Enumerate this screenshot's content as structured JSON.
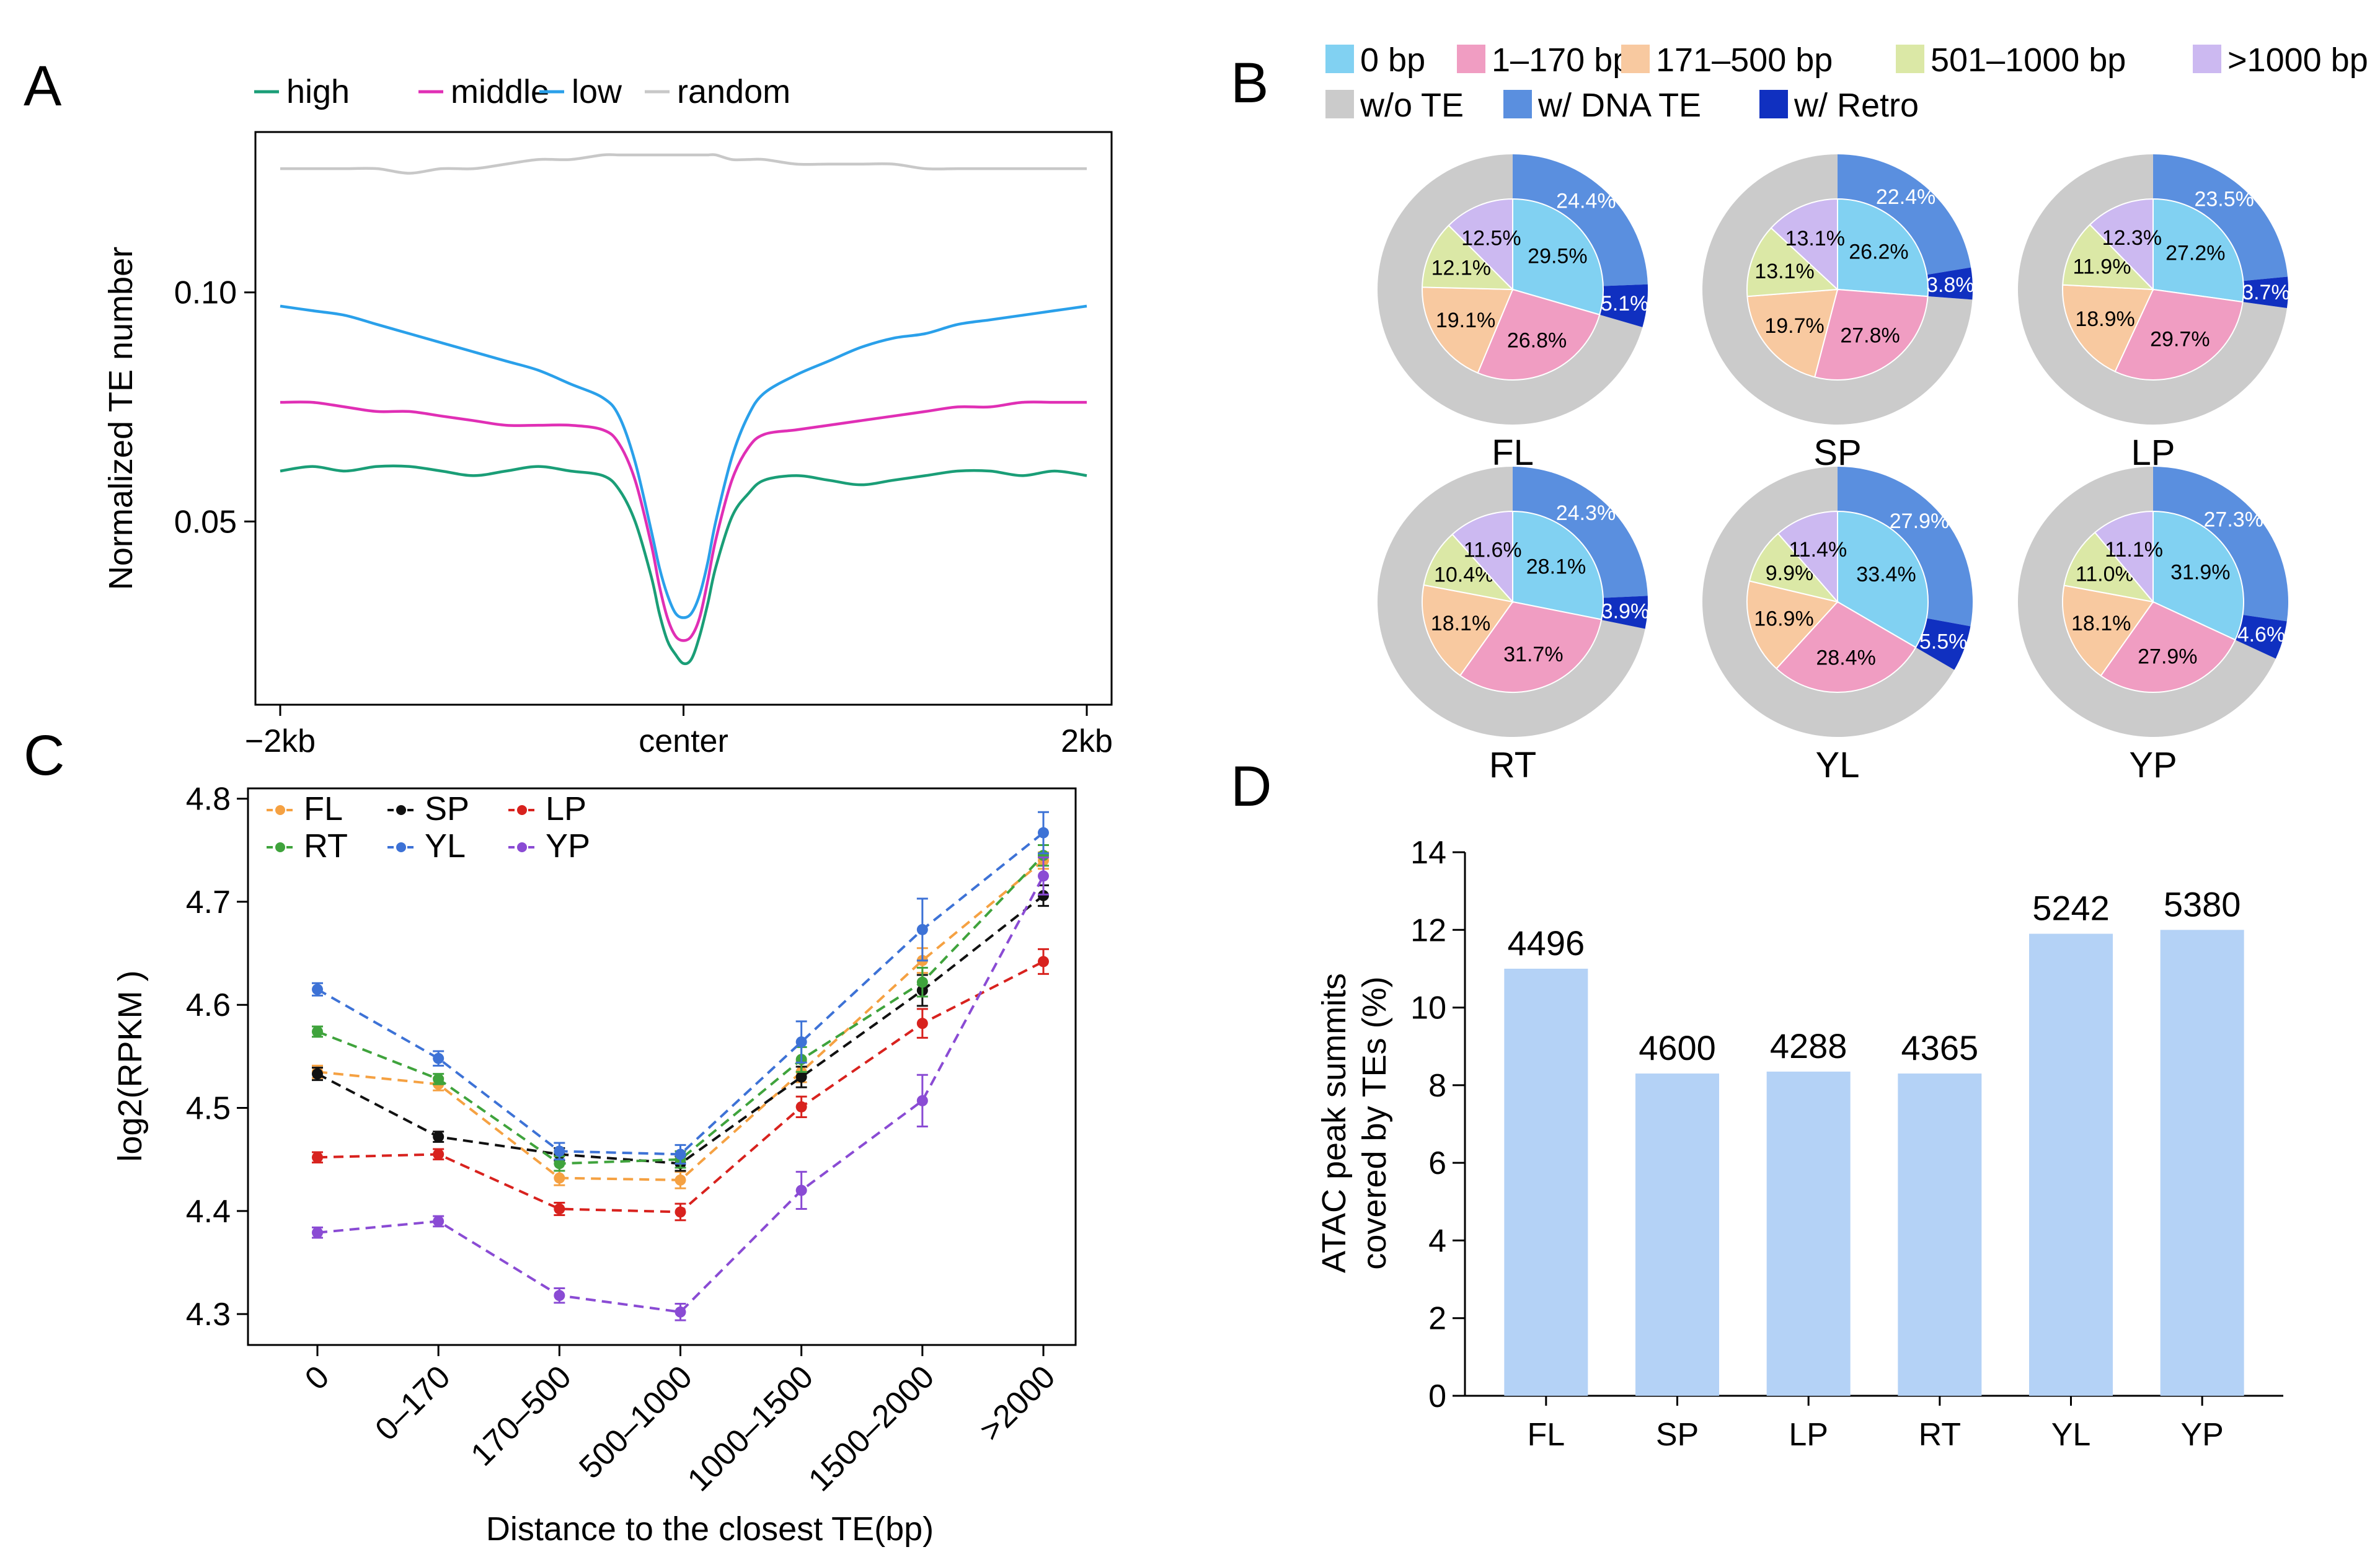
{
  "panels": {
    "a": "A",
    "b": "B",
    "c": "C",
    "d": "D"
  },
  "chart_data": [
    {
      "panel": "A",
      "type": "line",
      "ylabel": "Normalized TE number",
      "xlabel": "",
      "x_tick_labels": [
        "−2kb",
        "center",
        "2kb"
      ],
      "y_ticks": [
        0.05,
        0.1
      ],
      "y_tick_labels": [
        "0.05",
        "0.10"
      ],
      "ylim": [
        0.01,
        0.135
      ],
      "xlim": [
        0,
        100
      ],
      "x": [
        0,
        4,
        8,
        12,
        16,
        20,
        24,
        28,
        32,
        36,
        40,
        42,
        44,
        46,
        47,
        48,
        49,
        50,
        51,
        52,
        53,
        54,
        56,
        58,
        60,
        64,
        68,
        72,
        76,
        80,
        84,
        88,
        92,
        96,
        100
      ],
      "series": [
        {
          "name": "high",
          "color": "#1a9e77",
          "values": [
            0.061,
            0.062,
            0.061,
            0.062,
            0.062,
            0.061,
            0.06,
            0.061,
            0.062,
            0.061,
            0.06,
            0.057,
            0.05,
            0.038,
            0.03,
            0.024,
            0.021,
            0.019,
            0.02,
            0.025,
            0.032,
            0.04,
            0.051,
            0.056,
            0.059,
            0.06,
            0.059,
            0.058,
            0.059,
            0.06,
            0.061,
            0.061,
            0.06,
            0.061,
            0.06
          ]
        },
        {
          "name": "middle",
          "color": "#e02fb5",
          "values": [
            0.076,
            0.076,
            0.075,
            0.074,
            0.074,
            0.073,
            0.072,
            0.071,
            0.071,
            0.071,
            0.07,
            0.067,
            0.059,
            0.045,
            0.036,
            0.029,
            0.025,
            0.024,
            0.025,
            0.029,
            0.037,
            0.046,
            0.059,
            0.066,
            0.069,
            0.07,
            0.071,
            0.072,
            0.073,
            0.074,
            0.075,
            0.075,
            0.076,
            0.076,
            0.076
          ]
        },
        {
          "name": "low",
          "color": "#2aa0ea",
          "values": [
            0.097,
            0.096,
            0.095,
            0.093,
            0.091,
            0.089,
            0.087,
            0.085,
            0.083,
            0.08,
            0.077,
            0.073,
            0.063,
            0.048,
            0.04,
            0.034,
            0.03,
            0.029,
            0.03,
            0.034,
            0.041,
            0.05,
            0.064,
            0.073,
            0.078,
            0.082,
            0.085,
            0.088,
            0.09,
            0.091,
            0.093,
            0.094,
            0.095,
            0.096,
            0.097
          ]
        },
        {
          "name": "random",
          "color": "#c8c8c8",
          "values": [
            0.127,
            0.127,
            0.127,
            0.127,
            0.126,
            0.127,
            0.127,
            0.128,
            0.129,
            0.129,
            0.13,
            0.13,
            0.13,
            0.13,
            0.13,
            0.13,
            0.13,
            0.13,
            0.13,
            0.13,
            0.13,
            0.13,
            0.129,
            0.129,
            0.129,
            0.128,
            0.128,
            0.128,
            0.128,
            0.127,
            0.127,
            0.127,
            0.127,
            0.127,
            0.127
          ]
        }
      ]
    },
    {
      "panel": "B",
      "type": "pie",
      "legend": [
        {
          "label": "0 bp",
          "color": "#81d1f2"
        },
        {
          "label": "1–170 bp",
          "color": "#f09dc2"
        },
        {
          "label": "171–500 bp",
          "color": "#f8c9a0"
        },
        {
          "label": "501–1000 bp",
          "color": "#dbe8a6"
        },
        {
          "label": ">1000 bp",
          "color": "#ccb9f1"
        },
        {
          "label": "w/o TE",
          "color": "#cbcbcb"
        },
        {
          "label": "w/ DNA TE",
          "color": "#5a8fdf"
        },
        {
          "label": "w/ Retro",
          "color": "#1030c0"
        }
      ],
      "inner_categories": [
        "0 bp",
        "1–170 bp",
        "171–500 bp",
        "501–1000 bp",
        ">1000 bp"
      ],
      "inner_colors": [
        "#81d1f2",
        "#f09dc2",
        "#f8c9a0",
        "#dbe8a6",
        "#ccb9f1"
      ],
      "outer_colors": {
        "dna": "#5a8fdf",
        "retro": "#1030c0",
        "none": "#cbcbcb"
      },
      "pies": [
        {
          "tissue": "FL",
          "inner": [
            29.5,
            26.8,
            19.1,
            12.1,
            12.5
          ],
          "inner_labels": [
            "29.5%",
            "26.8%",
            "19.1%",
            "12.1%",
            "12.5%"
          ],
          "dna": 24.4,
          "dna_label": "24.4%",
          "retro": 5.1,
          "retro_label": "5.1%"
        },
        {
          "tissue": "SP",
          "inner": [
            26.2,
            27.8,
            19.7,
            13.1,
            13.1
          ],
          "inner_labels": [
            "26.2%",
            "27.8%",
            "19.7%",
            "13.1%",
            "13.1%"
          ],
          "dna": 22.4,
          "dna_label": "22.4%",
          "retro": 3.8,
          "retro_label": "3.8%"
        },
        {
          "tissue": "LP",
          "inner": [
            27.2,
            29.7,
            18.9,
            11.9,
            12.3
          ],
          "inner_labels": [
            "27.2%",
            "29.7%",
            "18.9%",
            "11.9%",
            "12.3%"
          ],
          "dna": 23.5,
          "dna_label": "23.5%",
          "retro": 3.7,
          "retro_label": "3.7%"
        },
        {
          "tissue": "RT",
          "inner": [
            28.1,
            31.7,
            18.1,
            10.4,
            11.6
          ],
          "inner_labels": [
            "28.1%",
            "31.7%",
            "18.1%",
            "10.4%",
            "11.6%"
          ],
          "dna": 24.3,
          "dna_label": "24.3%",
          "retro": 3.9,
          "retro_label": "3.9%"
        },
        {
          "tissue": "YL",
          "inner": [
            33.4,
            28.4,
            16.9,
            9.9,
            11.4
          ],
          "inner_labels": [
            "33.4%",
            "28.4%",
            "16.9%",
            "9.9%",
            "11.4%"
          ],
          "dna": 27.9,
          "dna_label": "27.9%",
          "retro": 5.5,
          "retro_label": "5.5%"
        },
        {
          "tissue": "YP",
          "inner": [
            31.9,
            27.9,
            18.1,
            11.0,
            11.1
          ],
          "inner_labels": [
            "31.9%",
            "27.9%",
            "18.1%",
            "11.0%",
            "11.1%"
          ],
          "dna": 27.3,
          "dna_label": "27.3%",
          "retro": 4.6,
          "retro_label": "4.6%"
        }
      ]
    },
    {
      "panel": "C",
      "type": "line",
      "xlabel": "Distance to the closest TE(bp)",
      "ylabel": "log2(RPKM )",
      "categories": [
        "0",
        "0–170",
        "170–500",
        "500–1000",
        "1000–1500",
        "1500–2000",
        ">2000"
      ],
      "ylim": [
        4.27,
        4.81
      ],
      "y_ticks": [
        4.3,
        4.4,
        4.5,
        4.6,
        4.7,
        4.8
      ],
      "y_tick_labels": [
        "4.3",
        "4.4",
        "4.5",
        "4.6",
        "4.7",
        "4.8"
      ],
      "series": [
        {
          "name": "FL",
          "color": "#f5a142",
          "values": [
            4.535,
            4.523,
            4.432,
            4.43,
            4.535,
            4.643,
            4.74
          ],
          "err": [
            0.006,
            0.006,
            0.007,
            0.008,
            0.01,
            0.012,
            0.008
          ]
        },
        {
          "name": "SP",
          "color": "#111111",
          "values": [
            4.533,
            4.472,
            4.455,
            4.446,
            4.53,
            4.614,
            4.706
          ],
          "err": [
            0.006,
            0.005,
            0.006,
            0.007,
            0.01,
            0.015,
            0.01
          ]
        },
        {
          "name": "LP",
          "color": "#d8221e",
          "values": [
            4.452,
            4.455,
            4.402,
            4.399,
            4.501,
            4.582,
            4.642
          ],
          "err": [
            0.005,
            0.005,
            0.006,
            0.008,
            0.01,
            0.014,
            0.012
          ]
        },
        {
          "name": "RT",
          "color": "#3fa33c",
          "values": [
            4.574,
            4.528,
            4.446,
            4.45,
            4.547,
            4.622,
            4.745
          ],
          "err": [
            0.005,
            0.005,
            0.007,
            0.008,
            0.012,
            0.014,
            0.01
          ]
        },
        {
          "name": "YL",
          "color": "#3d72d6",
          "values": [
            4.615,
            4.548,
            4.458,
            4.455,
            4.564,
            4.673,
            4.767
          ],
          "err": [
            0.006,
            0.007,
            0.008,
            0.009,
            0.02,
            0.03,
            0.02
          ]
        },
        {
          "name": "YP",
          "color": "#8a4bd4",
          "values": [
            4.379,
            4.39,
            4.318,
            4.302,
            4.42,
            4.507,
            4.725
          ],
          "err": [
            0.005,
            0.005,
            0.007,
            0.008,
            0.018,
            0.025,
            0.018
          ]
        }
      ]
    },
    {
      "panel": "D",
      "type": "bar",
      "categories": [
        "FL",
        "SP",
        "LP",
        "RT",
        "YL",
        "YP"
      ],
      "values": [
        11.0,
        8.3,
        8.35,
        8.3,
        11.9,
        12.0
      ],
      "bar_labels": [
        "4496",
        "4600",
        "4288",
        "4365",
        "5242",
        "5380"
      ],
      "ylabel_line1": "ATAC peak summits",
      "ylabel_line2": "covered by TEs (%)",
      "ylim": [
        0,
        14
      ],
      "y_ticks": [
        0,
        2,
        4,
        6,
        8,
        10,
        12,
        14
      ],
      "y_tick_labels": [
        "0",
        "2",
        "4",
        "6",
        "8",
        "10",
        "12",
        "14"
      ],
      "bar_color": "#b4d2f6"
    }
  ]
}
